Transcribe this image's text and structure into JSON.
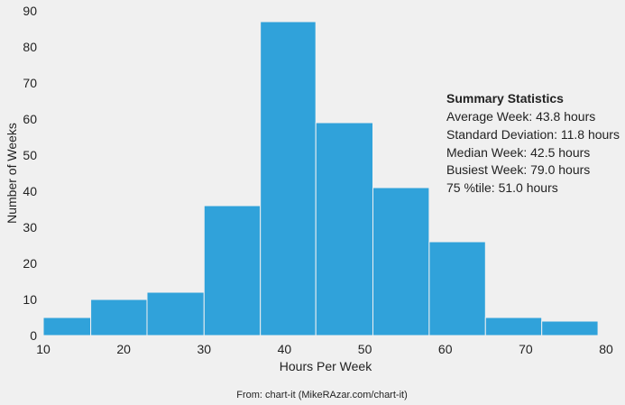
{
  "chart_data": {
    "type": "histogram",
    "xlabel": "Hours Per Week",
    "ylabel": "Number of Weeks",
    "xlim": [
      10,
      80
    ],
    "ylim": [
      0,
      90
    ],
    "xticks": [
      10,
      20,
      30,
      40,
      50,
      60,
      70,
      80
    ],
    "yticks": [
      0,
      10,
      20,
      30,
      40,
      50,
      60,
      70,
      80,
      90
    ],
    "bins": [
      {
        "start": 10.0,
        "end": 15.9,
        "count": 5
      },
      {
        "start": 15.9,
        "end": 22.9,
        "count": 10
      },
      {
        "start": 22.9,
        "end": 30.0,
        "count": 12
      },
      {
        "start": 30.0,
        "end": 37.0,
        "count": 36
      },
      {
        "start": 37.0,
        "end": 43.9,
        "count": 87
      },
      {
        "start": 43.9,
        "end": 51.0,
        "count": 59
      },
      {
        "start": 51.0,
        "end": 58.0,
        "count": 41
      },
      {
        "start": 58.0,
        "end": 65.0,
        "count": 26
      },
      {
        "start": 65.0,
        "end": 72.0,
        "count": 5
      },
      {
        "start": 72.0,
        "end": 79.0,
        "count": 4
      }
    ],
    "bar_color": "#30a2da",
    "grid": false,
    "annotation": {
      "title": "Summary Statistics",
      "lines": [
        "Average Week: 43.8 hours",
        "Standard Deviation: 11.8 hours",
        "Median Week: 42.5 hours",
        "Busiest Week: 79.0 hours",
        "75 %tile: 51.0 hours"
      ]
    },
    "source": "From: chart-it (MikeRAzar.com/chart-it)"
  }
}
